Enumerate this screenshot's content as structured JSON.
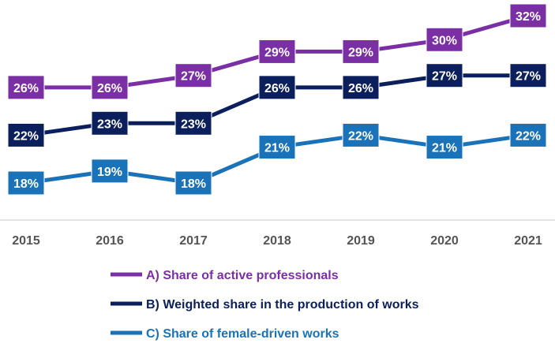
{
  "chart_data": {
    "type": "line",
    "title": "",
    "xlabel": "",
    "ylabel": "",
    "x": [
      "2015",
      "2016",
      "2017",
      "2018",
      "2019",
      "2020",
      "2021"
    ],
    "ylim": [
      15,
      33
    ],
    "grid": false,
    "legend_position": "bottom-center",
    "value_suffix": "%",
    "series": [
      {
        "name": "A) Share of active professionals",
        "color": "#7b2fa5",
        "values": [
          26,
          26,
          27,
          29,
          29,
          30,
          32
        ]
      },
      {
        "name": "B) Weighted share in the production of works",
        "color": "#0b1f5c",
        "values": [
          22,
          23,
          23,
          26,
          26,
          27,
          27
        ]
      },
      {
        "name": "C) Share of female-driven works",
        "color": "#1a73b8",
        "values": [
          18,
          19,
          18,
          21,
          22,
          21,
          22
        ]
      }
    ]
  }
}
